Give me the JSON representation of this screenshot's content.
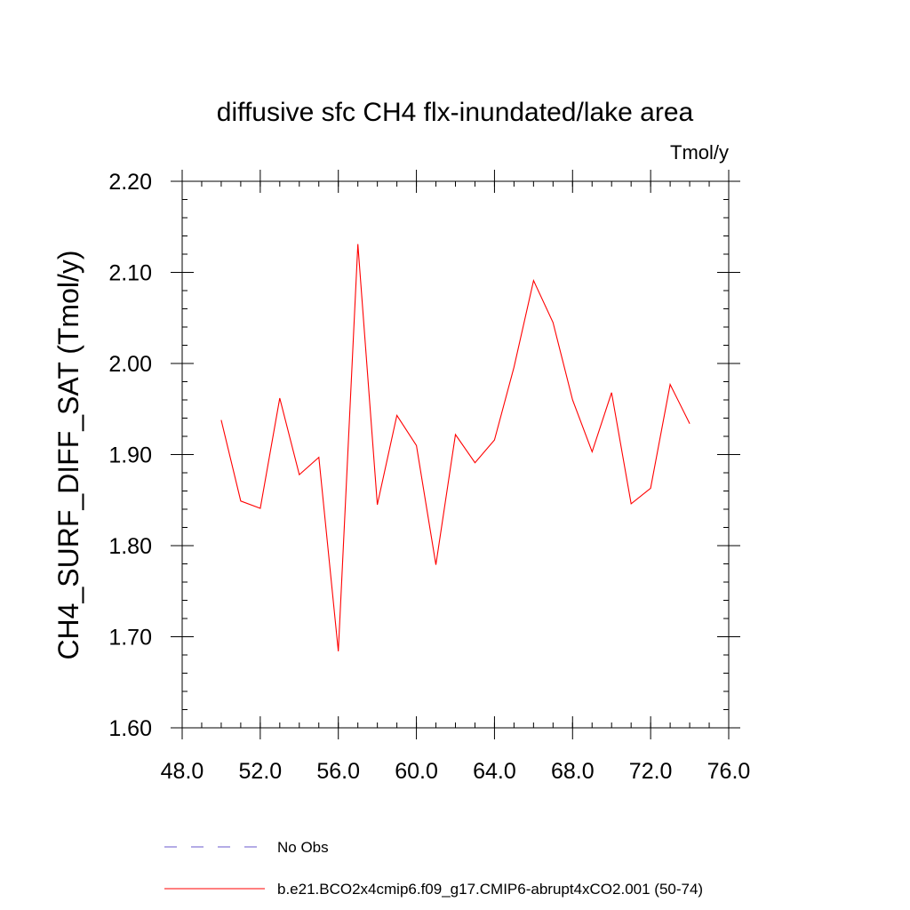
{
  "chart_data": {
    "type": "line",
    "title": "diffusive sfc CH4 flx-inundated/lake area",
    "units_label": "Tmol/y",
    "ylabel": "CH4_SURF_DIFF_SAT  (Tmol/y)",
    "xlabel": "",
    "xlim": [
      48,
      76
    ],
    "ylim": [
      1.6,
      2.2
    ],
    "x_ticks": [
      "48.0",
      "52.0",
      "56.0",
      "60.0",
      "64.0",
      "68.0",
      "72.0",
      "76.0"
    ],
    "y_ticks": [
      "1.60",
      "1.70",
      "1.80",
      "1.90",
      "2.00",
      "2.10",
      "2.20"
    ],
    "x_minor_step": 1,
    "y_minor_step": 0.02,
    "grid": false,
    "legend_position": "bottom",
    "series": [
      {
        "name": "b.e21.BCO2x4cmip6.f09_g17.CMIP6-abrupt4xCO2.001 (50-74)",
        "color": "#ff0000",
        "style": "solid",
        "x": [
          50,
          51,
          52,
          53,
          54,
          55,
          56,
          57,
          58,
          59,
          60,
          61,
          62,
          63,
          64,
          65,
          66,
          67,
          68,
          69,
          70,
          71,
          72,
          73,
          74
        ],
        "y": [
          1.938,
          1.849,
          1.841,
          1.962,
          1.878,
          1.897,
          1.684,
          2.131,
          1.845,
          1.943,
          1.91,
          1.779,
          1.922,
          1.891,
          1.916,
          1.996,
          2.091,
          2.045,
          1.96,
          1.903,
          1.968,
          1.846,
          1.863,
          1.977,
          1.934
        ]
      }
    ],
    "legend": [
      {
        "label": "No Obs",
        "color": "#6a5acd",
        "style": "dashed"
      },
      {
        "label": "b.e21.BCO2x4cmip6.f09_g17.CMIP6-abrupt4xCO2.001 (50-74)",
        "color": "#ff0000",
        "style": "solid"
      }
    ]
  }
}
